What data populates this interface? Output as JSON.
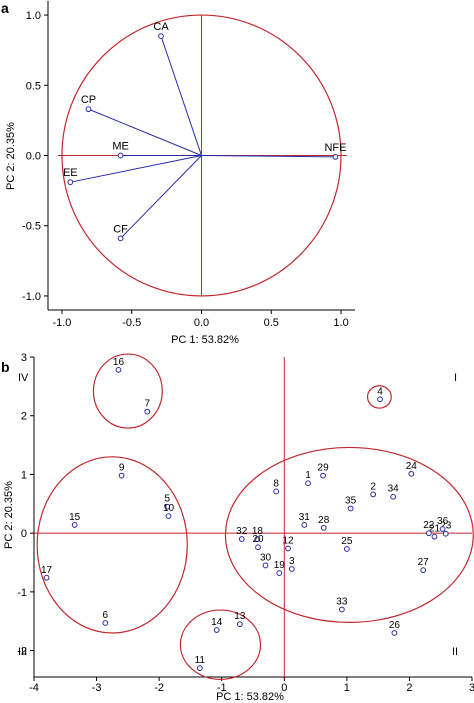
{
  "chart_data": [
    {
      "panel_label": "a",
      "type": "scatter",
      "title": "",
      "xlabel": "PC 1: 53.82%",
      "ylabel": "PC 2: 20.35%",
      "xlim": [
        -1.1,
        1.1
      ],
      "ylim": [
        -1.1,
        1.1
      ],
      "x_ticks": [
        -1.0,
        -0.5,
        0.0,
        0.5,
        1.0
      ],
      "x_tick_labels": [
        "-1.0",
        "-0.5",
        "0.0",
        "0.5",
        "1.0"
      ],
      "y_ticks": [
        -1.0,
        -0.5,
        0.0,
        0.5,
        1.0
      ],
      "y_tick_labels": [
        "-1.0",
        "-0.5",
        "0.0",
        "0.5",
        "1.0"
      ],
      "grid": false,
      "circle_radius": 1.0,
      "vector_color": "#2a2aa8",
      "circle_color": "#c0282d",
      "points": [
        {
          "label": "CA",
          "x": -0.29,
          "y": 0.85
        },
        {
          "label": "CP",
          "x": -0.81,
          "y": 0.33
        },
        {
          "label": "ME",
          "x": -0.58,
          "y": 0.0
        },
        {
          "label": "EE",
          "x": -0.94,
          "y": -0.19
        },
        {
          "label": "CF",
          "x": -0.58,
          "y": -0.59
        },
        {
          "label": "NFE",
          "x": 0.96,
          "y": -0.01
        }
      ]
    },
    {
      "panel_label": "b",
      "type": "scatter",
      "title": "",
      "xlabel": "PC 1: 53.82%",
      "ylabel": "PC 2: 20.35%",
      "xlim": [
        -4,
        3
      ],
      "ylim": [
        -2.45,
        3.0
      ],
      "x_ticks": [
        -4,
        -3,
        -2,
        -1,
        0,
        1,
        2,
        3
      ],
      "x_tick_labels": [
        "-4",
        "-3",
        "-2",
        "-1",
        "0",
        "1",
        "2",
        "3"
      ],
      "y_ticks": [
        -2,
        -1,
        0,
        1,
        2,
        3
      ],
      "y_tick_labels": [
        "-2",
        "-1",
        "0",
        "1",
        "2",
        "3"
      ],
      "grid": false,
      "quadrant_labels": [
        "I",
        "II",
        "III",
        "IV"
      ],
      "point_color": "#2a2aa8",
      "ellipse_color": "#c0282d",
      "points": [
        {
          "label": "1",
          "x": 0.38,
          "y": 0.85
        },
        {
          "label": "2",
          "x": 1.42,
          "y": 0.66
        },
        {
          "label": "3",
          "x": 0.12,
          "y": -0.61
        },
        {
          "label": "4",
          "x": 1.53,
          "y": 2.28
        },
        {
          "label": "5",
          "x": -1.87,
          "y": 0.45
        },
        {
          "label": "6",
          "x": -2.86,
          "y": -1.53
        },
        {
          "label": "7",
          "x": -2.19,
          "y": 2.07
        },
        {
          "label": "8",
          "x": -0.13,
          "y": 0.71
        },
        {
          "label": "9",
          "x": -2.6,
          "y": 0.98
        },
        {
          "label": "10",
          "x": -1.85,
          "y": 0.29
        },
        {
          "label": "11",
          "x": -1.35,
          "y": -2.3
        },
        {
          "label": "12",
          "x": 0.06,
          "y": -0.26
        },
        {
          "label": "13",
          "x": -0.71,
          "y": -1.55
        },
        {
          "label": "14",
          "x": -1.08,
          "y": -1.65
        },
        {
          "label": "15",
          "x": -3.35,
          "y": 0.14
        },
        {
          "label": "16",
          "x": -2.65,
          "y": 2.78
        },
        {
          "label": "17",
          "x": -3.8,
          "y": -0.76
        },
        {
          "label": "18",
          "x": -0.43,
          "y": -0.1
        },
        {
          "label": "19",
          "x": -0.08,
          "y": -0.68
        },
        {
          "label": "20",
          "x": -0.42,
          "y": -0.24
        },
        {
          "label": "21",
          "x": 2.4,
          "y": -0.06
        },
        {
          "label": "22",
          "x": 2.31,
          "y": 0.0
        },
        {
          "label": "23",
          "x": 2.58,
          "y": -0.01
        },
        {
          "label": "24",
          "x": 2.03,
          "y": 1.01
        },
        {
          "label": "25",
          "x": 1.0,
          "y": -0.27
        },
        {
          "label": "26",
          "x": 1.76,
          "y": -1.7
        },
        {
          "label": "27",
          "x": 2.22,
          "y": -0.63
        },
        {
          "label": "28",
          "x": 0.63,
          "y": 0.09
        },
        {
          "label": "29",
          "x": 0.62,
          "y": 0.98
        },
        {
          "label": "30",
          "x": -0.3,
          "y": -0.55
        },
        {
          "label": "31",
          "x": 0.32,
          "y": 0.14
        },
        {
          "label": "32",
          "x": -0.68,
          "y": -0.1
        },
        {
          "label": "33",
          "x": 0.92,
          "y": -1.3
        },
        {
          "label": "34",
          "x": 1.74,
          "y": 0.62
        },
        {
          "label": "35",
          "x": 1.06,
          "y": 0.42
        },
        {
          "label": "36",
          "x": 2.53,
          "y": 0.07
        }
      ],
      "ellipses": [
        {
          "group": "16-7",
          "cx": -2.5,
          "cy": 2.42,
          "rx": 0.55,
          "ry": 0.63
        },
        {
          "group": "4",
          "cx": 1.52,
          "cy": 2.32,
          "rx": 0.19,
          "ry": 0.19
        },
        {
          "group": "6-9-10-15-17",
          "cx": -2.75,
          "cy": -0.2,
          "rx": 1.2,
          "ry": 1.5
        },
        {
          "group": "11-13-14",
          "cx": -1.02,
          "cy": -1.9,
          "rx": 0.64,
          "ry": 0.59
        },
        {
          "group": "I-II",
          "cx": 1.04,
          "cy": -0.03,
          "rx": 1.98,
          "ry": 1.49
        }
      ]
    }
  ]
}
